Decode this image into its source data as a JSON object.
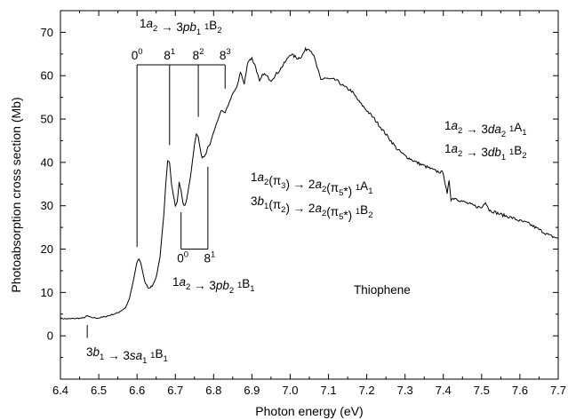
{
  "chart_data": {
    "type": "line",
    "xlabel": "Photon energy (eV)",
    "ylabel": "Photoabsorption cross section (Mb)",
    "xlim": [
      6.4,
      7.7
    ],
    "ylim": [
      -10,
      75
    ],
    "x_ticks": [
      "6.4",
      "6.5",
      "6.6",
      "6.7",
      "6.8",
      "6.9",
      "7.0",
      "7.1",
      "7.2",
      "7.3",
      "7.4",
      "7.5",
      "7.6",
      "7.7"
    ],
    "y_ticks": [
      "0",
      "10",
      "20",
      "30",
      "40",
      "50",
      "60",
      "70"
    ],
    "grid": false,
    "legend": "none",
    "series": [
      {
        "x": [
          6.4,
          6.42,
          6.44,
          6.46,
          6.47,
          6.48,
          6.5,
          6.52,
          6.55,
          6.57,
          6.58,
          6.59,
          6.6,
          6.605,
          6.61,
          6.62,
          6.63,
          6.64,
          6.65,
          6.66,
          6.67,
          6.675,
          6.68,
          6.685,
          6.69,
          6.7,
          6.705,
          6.71,
          6.715,
          6.72,
          6.725,
          6.73,
          6.74,
          6.75,
          6.755,
          6.76,
          6.765,
          6.77,
          6.78,
          6.785,
          6.79,
          6.8,
          6.81,
          6.82,
          6.83,
          6.84,
          6.85,
          6.86,
          6.87,
          6.88,
          6.89,
          6.9,
          6.91,
          6.92,
          6.93,
          6.95,
          6.97,
          6.99,
          7.0,
          7.01,
          7.02,
          7.03,
          7.04,
          7.05,
          7.06,
          7.07,
          7.08,
          7.09,
          7.1,
          7.12,
          7.14,
          7.16,
          7.18,
          7.2,
          7.22,
          7.25,
          7.28,
          7.3,
          7.33,
          7.36,
          7.38,
          7.4,
          7.405,
          7.41,
          7.415,
          7.42,
          7.43,
          7.45,
          7.48,
          7.5,
          7.51,
          7.52,
          7.55,
          7.58,
          7.6,
          7.62,
          7.65,
          7.68,
          7.7
        ],
        "y": [
          4.0,
          3.9,
          4.0,
          4.1,
          4.6,
          4.2,
          4.1,
          4.5,
          5.3,
          6.5,
          8.5,
          12.5,
          17.0,
          17.8,
          16.8,
          12.5,
          11.0,
          11.5,
          13.5,
          18.0,
          28.0,
          35.0,
          40.5,
          40.0,
          35.0,
          30.0,
          30.8,
          35.5,
          33.5,
          30.5,
          30.0,
          31.5,
          37.0,
          44.0,
          46.5,
          46.0,
          43.0,
          41.0,
          41.8,
          43.5,
          44.0,
          47.0,
          49.5,
          52.0,
          51.5,
          53.5,
          56.0,
          57.0,
          61.0,
          58.0,
          63.5,
          64.0,
          62.0,
          58.5,
          60.5,
          59.0,
          61.0,
          63.5,
          65.0,
          64.5,
          64.0,
          64.5,
          66.0,
          66.3,
          65.0,
          62.0,
          59.0,
          59.5,
          59.2,
          59.0,
          57.5,
          56.5,
          54.0,
          52.0,
          50.0,
          46.5,
          43.0,
          41.5,
          40.0,
          38.8,
          38.0,
          37.6,
          35.0,
          32.5,
          36.0,
          31.5,
          31.8,
          31.0,
          30.0,
          29.5,
          31.0,
          29.0,
          28.0,
          27.2,
          26.5,
          26.0,
          24.5,
          23.0,
          22.5
        ]
      }
    ],
    "annotations": {
      "top_assign": [
        {
          "t": "1"
        },
        {
          "t": "a",
          "i": 1
        },
        {
          "t": "2",
          "sub": 1
        },
        {
          "t": " → 3"
        },
        {
          "t": "pb",
          "i": 1
        },
        {
          "t": "1",
          "sub": 1
        },
        {
          "t": " "
        },
        {
          "t": "1",
          "sup": 1
        },
        {
          "t": "B"
        },
        {
          "t": "2",
          "sub": 1
        }
      ],
      "top_ladder": {
        "x": [
          6.6,
          6.685,
          6.76,
          6.83
        ],
        "labels": [
          [
            {
              "t": "0"
            },
            {
              "t": "0",
              "sup": 1
            }
          ],
          [
            {
              "t": "8"
            },
            {
              "t": "1",
              "sup": 1
            }
          ],
          [
            {
              "t": "8"
            },
            {
              "t": "2",
              "sup": 1
            }
          ],
          [
            {
              "t": "8"
            },
            {
              "t": "3",
              "sup": 1
            }
          ]
        ],
        "bar_y": 62.5,
        "drop_y": [
          20.5,
          44.0,
          50.5,
          57.0
        ]
      },
      "low_ladder": {
        "x": [
          6.715,
          6.785
        ],
        "labels": [
          [
            {
              "t": "0"
            },
            {
              "t": "0",
              "sup": 1
            }
          ],
          [
            {
              "t": "8"
            },
            {
              "t": "1",
              "sup": 1
            }
          ]
        ],
        "bar_y": 20.0,
        "rise_y": [
          28.5,
          39.0
        ]
      },
      "low_assign": [
        {
          "t": "1"
        },
        {
          "t": "a",
          "i": 1
        },
        {
          "t": "2",
          "sub": 1
        },
        {
          "t": " → 3"
        },
        {
          "t": "pb",
          "i": 1
        },
        {
          "t": "2",
          "sub": 1
        },
        {
          "t": " "
        },
        {
          "t": "1",
          "sup": 1
        },
        {
          "t": "B"
        },
        {
          "t": "1",
          "sub": 1
        }
      ],
      "pi_assign_1": [
        {
          "t": "1"
        },
        {
          "t": "a",
          "i": 1
        },
        {
          "t": "2",
          "sub": 1
        },
        {
          "t": "(π"
        },
        {
          "t": "3",
          "sub": 1
        },
        {
          "t": ") → 2"
        },
        {
          "t": "a",
          "i": 1
        },
        {
          "t": "2",
          "sub": 1
        },
        {
          "t": "(π"
        },
        {
          "t": "5",
          "sub": 1
        },
        {
          "t": "*) "
        },
        {
          "t": "1",
          "sup": 1
        },
        {
          "t": "A"
        },
        {
          "t": "1",
          "sub": 1
        }
      ],
      "pi_assign_2": [
        {
          "t": "3"
        },
        {
          "t": "b",
          "i": 1
        },
        {
          "t": "1",
          "sub": 1
        },
        {
          "t": "(π"
        },
        {
          "t": "2",
          "sub": 1
        },
        {
          "t": ") → 2"
        },
        {
          "t": "a",
          "i": 1
        },
        {
          "t": "2",
          "sub": 1
        },
        {
          "t": "(π"
        },
        {
          "t": "5",
          "sub": 1
        },
        {
          "t": "*) "
        },
        {
          "t": "1",
          "sup": 1
        },
        {
          "t": "B"
        },
        {
          "t": "2",
          "sub": 1
        }
      ],
      "d_assign_1": [
        {
          "t": "1"
        },
        {
          "t": "a",
          "i": 1
        },
        {
          "t": "2",
          "sub": 1
        },
        {
          "t": " → 3"
        },
        {
          "t": "da",
          "i": 1
        },
        {
          "t": "2",
          "sub": 1
        },
        {
          "t": " "
        },
        {
          "t": "1",
          "sup": 1
        },
        {
          "t": "A"
        },
        {
          "t": "1",
          "sub": 1
        }
      ],
      "d_assign_2": [
        {
          "t": "1"
        },
        {
          "t": "a",
          "i": 1
        },
        {
          "t": "2",
          "sub": 1
        },
        {
          "t": " → 3"
        },
        {
          "t": "db",
          "i": 1
        },
        {
          "t": "1",
          "sub": 1
        },
        {
          "t": " "
        },
        {
          "t": "1",
          "sup": 1
        },
        {
          "t": "B"
        },
        {
          "t": "2",
          "sub": 1
        }
      ],
      "s_assign": [
        {
          "t": "3"
        },
        {
          "t": "b",
          "i": 1
        },
        {
          "t": "1",
          "sub": 1
        },
        {
          "t": " → 3"
        },
        {
          "t": "sa",
          "i": 1
        },
        {
          "t": "1",
          "sub": 1
        },
        {
          "t": " "
        },
        {
          "t": "1",
          "sup": 1
        },
        {
          "t": "B"
        },
        {
          "t": "1",
          "sub": 1
        }
      ],
      "s_marker_x": 6.47,
      "molecule": "Thiophene"
    }
  }
}
